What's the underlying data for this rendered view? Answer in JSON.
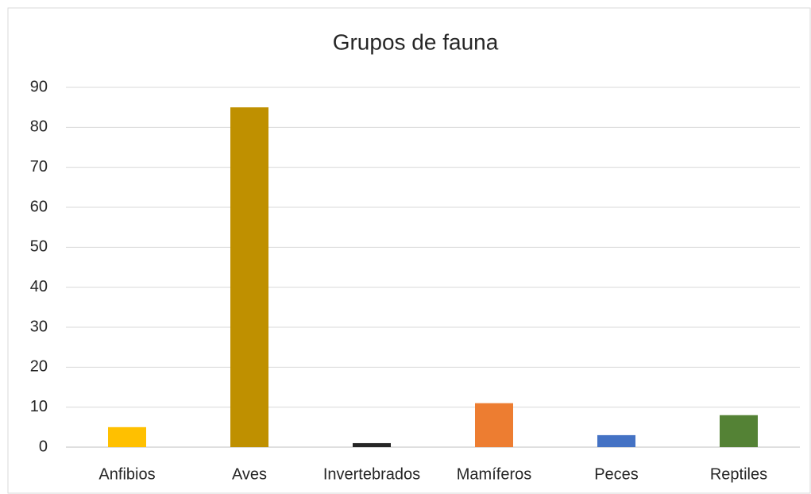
{
  "chart_data": {
    "type": "bar",
    "title": "Grupos de fauna",
    "categories": [
      "Anfibios",
      "Aves",
      "Invertebrados",
      "Mamíferos",
      "Peces",
      "Reptiles"
    ],
    "values": [
      5,
      85,
      1,
      11,
      3,
      8
    ],
    "colors": [
      "#ffc000",
      "#bf9000",
      "#262626",
      "#ed7d31",
      "#4472c4",
      "#548235"
    ],
    "ylim": [
      0,
      90
    ],
    "yticks": [
      0,
      10,
      20,
      30,
      40,
      50,
      60,
      70,
      80,
      90
    ],
    "grid": true
  }
}
